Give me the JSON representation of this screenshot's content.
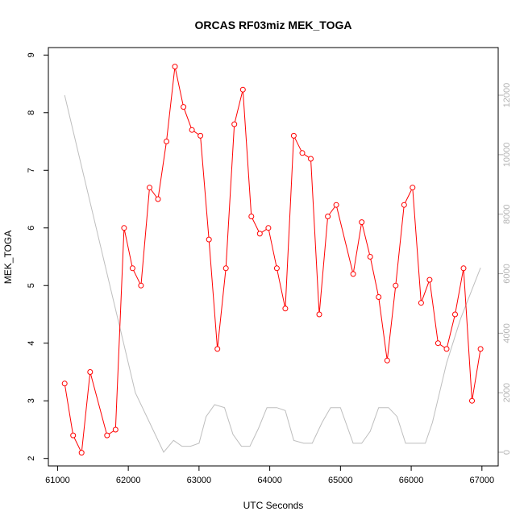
{
  "chart_data": {
    "type": "line",
    "title": "ORCAS RF03miz MEK_TOGA",
    "xlabel": "UTC Seconds",
    "ylabel": "MEK_TOGA",
    "xlim": [
      60870,
      67230
    ],
    "ylim": [
      1.87,
      9.13
    ],
    "y2lim": [
      -460,
      13600
    ],
    "x_ticks": [
      61000,
      62000,
      63000,
      64000,
      65000,
      66000,
      67000
    ],
    "y_ticks": [
      2,
      3,
      4,
      5,
      6,
      7,
      8,
      9
    ],
    "y2_ticks": [
      0,
      2000,
      4000,
      6000,
      8000,
      10000,
      12000
    ],
    "grid": false,
    "colors": {
      "primary": "#ff0000",
      "secondary": "#bebebe",
      "axis": "#000000",
      "right_axis": "#b3b3b3"
    },
    "series": [
      {
        "axis": "left",
        "marker": "open-circle",
        "x": [
          61100,
          61220,
          61340,
          61460,
          61700,
          61820,
          61940,
          62060,
          62180,
          62300,
          62420,
          62540,
          62660,
          62780,
          62900,
          63020,
          63140,
          63260,
          63380,
          63500,
          63620,
          63740,
          63860,
          63980,
          64100,
          64220,
          64340,
          64460,
          64580,
          64700,
          64820,
          64940,
          65180,
          65300,
          65420,
          65540,
          65660,
          65780,
          65900,
          66020,
          66140,
          66260,
          66380,
          66500,
          66620,
          66740,
          66860,
          66980
        ],
        "y": [
          3.3,
          2.4,
          2.1,
          3.5,
          2.4,
          2.5,
          6.0,
          5.3,
          5.0,
          6.7,
          6.5,
          7.5,
          8.8,
          8.1,
          7.7,
          7.6,
          5.8,
          3.9,
          5.3,
          7.8,
          8.4,
          6.2,
          5.9,
          6.0,
          5.3,
          4.6,
          7.6,
          7.3,
          7.2,
          4.5,
          6.2,
          6.4,
          5.2,
          6.1,
          5.5,
          4.8,
          3.7,
          5.0,
          6.4,
          6.7,
          4.7,
          5.1,
          4.0,
          3.9,
          4.5,
          5.3,
          3.0,
          3.9
        ]
      },
      {
        "axis": "right",
        "x": [
          61100,
          61300,
          61500,
          61700,
          61900,
          62100,
          62300,
          62500,
          62640,
          62760,
          62880,
          63000,
          63100,
          63220,
          63360,
          63480,
          63600,
          63720,
          63840,
          63960,
          64100,
          64220,
          64340,
          64480,
          64600,
          64740,
          64860,
          65000,
          65180,
          65300,
          65420,
          65540,
          65680,
          65800,
          65920,
          66060,
          66200,
          66300,
          66500,
          66700,
          66980
        ],
        "y": [
          12000,
          10000,
          8000,
          6000,
          4000,
          2000,
          1000,
          0,
          400,
          200,
          200,
          300,
          1200,
          1600,
          1500,
          600,
          200,
          200,
          800,
          1500,
          1500,
          1400,
          400,
          300,
          300,
          1000,
          1500,
          1500,
          300,
          300,
          700,
          1500,
          1500,
          1200,
          300,
          300,
          300,
          1000,
          3000,
          4500,
          6200
        ]
      }
    ]
  }
}
